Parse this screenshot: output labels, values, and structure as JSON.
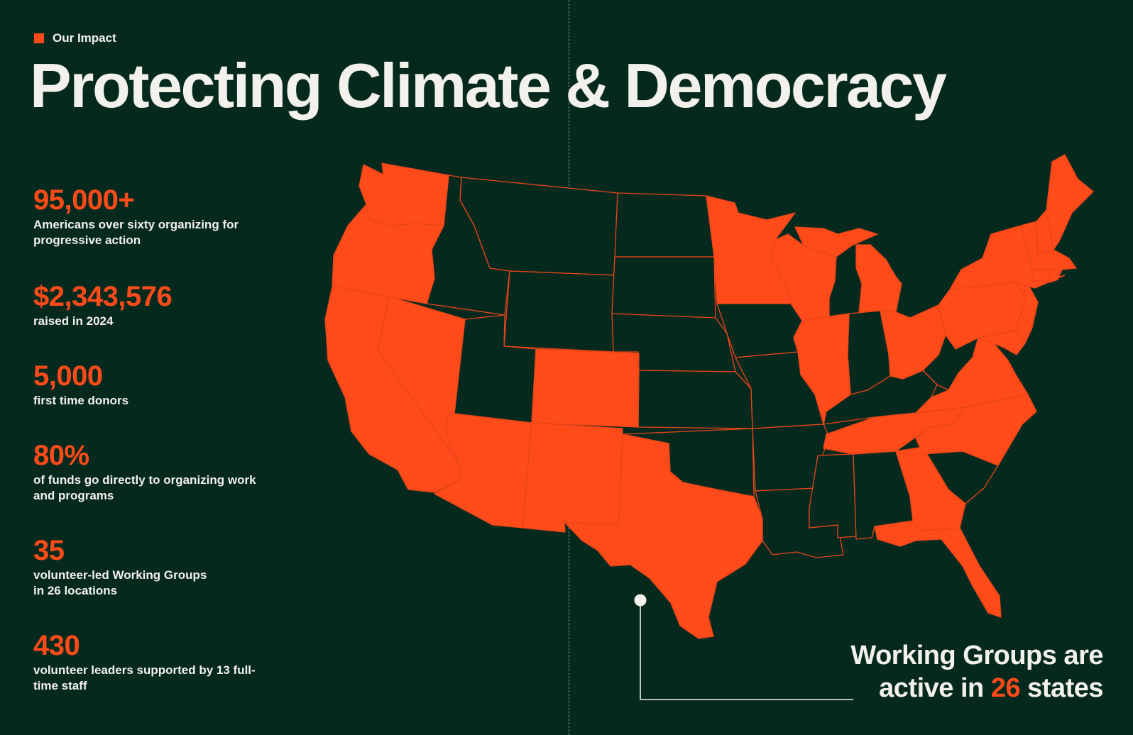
{
  "header": {
    "eyebrow": "Our Impact",
    "title": "Protecting Climate & Democracy"
  },
  "stats": [
    {
      "value": "95,000+",
      "label_lines": [
        "Americans over sixty organizing for",
        "progressive action"
      ]
    },
    {
      "value": "$2,343,576",
      "label_lines": [
        "raised in 2024"
      ]
    },
    {
      "value": "5,000",
      "label_lines": [
        "first time donors"
      ]
    },
    {
      "value": "80%",
      "label_lines": [
        "of funds go directly to organizing work",
        "and programs"
      ]
    },
    {
      "value": "35",
      "label_lines": [
        "volunteer-led Working Groups",
        "in 26 locations"
      ]
    },
    {
      "value": "430",
      "label_lines": [
        "volunteer leaders supported by 13 full-",
        "time staff"
      ]
    }
  ],
  "callout": {
    "line1": "Working Groups are",
    "line2_prefix": "active in",
    "line2_number": "26",
    "line2_suffix": "states"
  },
  "colors": {
    "background": "#06291e",
    "accent": "#ff4b19",
    "text": "#f3f1ec"
  }
}
